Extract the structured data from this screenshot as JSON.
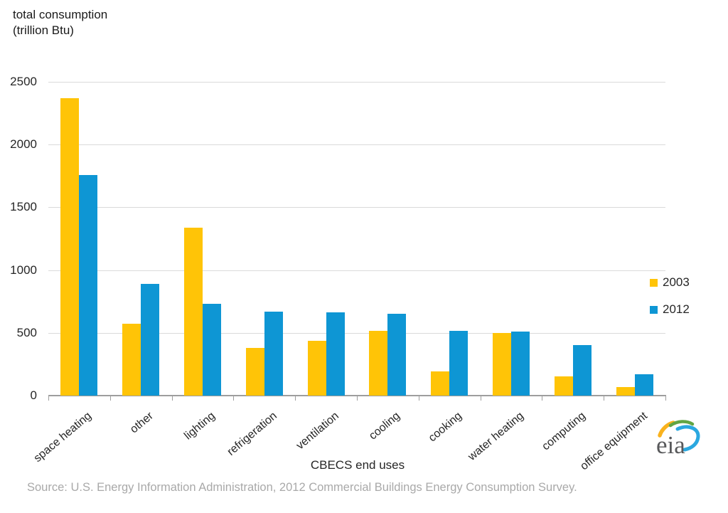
{
  "title": {
    "line1": "total consumption",
    "line2": "(trillion Btu)"
  },
  "chart_data": {
    "type": "bar",
    "title": "total consumption (trillion Btu)",
    "categories": [
      "space heating",
      "other",
      "lighting",
      "refrigeration",
      "ventilation",
      "cooling",
      "cooking",
      "water heating",
      "computing",
      "office equipment"
    ],
    "series": [
      {
        "name": "2003",
        "color": "#FFC407",
        "values": [
          2370,
          570,
          1340,
          380,
          435,
          515,
          190,
          500,
          155,
          70
        ]
      },
      {
        "name": "2012",
        "color": "#0E96D4",
        "values": [
          1760,
          890,
          730,
          670,
          665,
          650,
          515,
          510,
          400,
          170
        ]
      }
    ],
    "xlabel": "CBECS end uses",
    "ylabel": "total consumption (trillion Btu)",
    "ylim": [
      0,
      2500
    ],
    "yticks": [
      0,
      500,
      1000,
      1500,
      2000,
      2500
    ],
    "grid": true,
    "legend_position": "middle-right"
  },
  "source": "Source: U.S. Energy Information Administration, 2012 Commercial Buildings Energy Consumption Survey.",
  "logo": {
    "text": "eia"
  },
  "colors": {
    "bar_2003": "#FFC407",
    "bar_2012": "#0E96D4",
    "gridline": "#dadada",
    "axis": "#9e9e9e",
    "tick_text": "#262626",
    "source_text": "#a9a9a9"
  }
}
